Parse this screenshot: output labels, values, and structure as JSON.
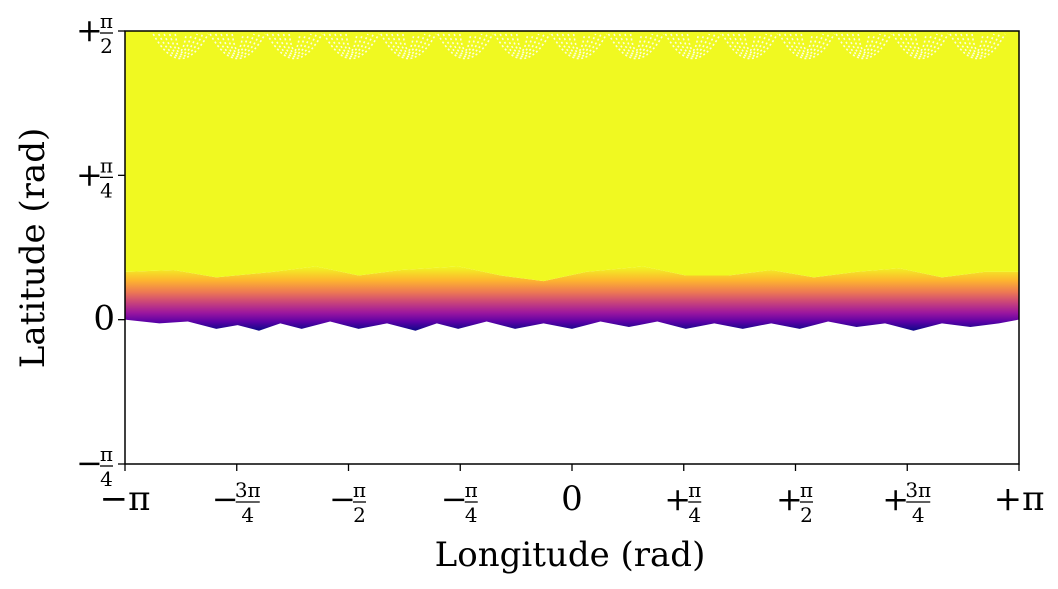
{
  "chart_data": {
    "type": "scatter",
    "xlabel": "Longitude (rad)",
    "ylabel": "Latitude (rad)",
    "xlim": [
      -3.14159265,
      3.14159265
    ],
    "ylim": [
      -0.78539816,
      1.57079633
    ],
    "x_ticks": [
      {
        "value": -3.14159265,
        "label": "−π"
      },
      {
        "value": -2.35619449,
        "label": "−3π/4"
      },
      {
        "value": -1.57079633,
        "label": "−π/2"
      },
      {
        "value": -0.78539816,
        "label": "−π/4"
      },
      {
        "value": 0,
        "label": "0"
      },
      {
        "value": 0.78539816,
        "label": "+π/4"
      },
      {
        "value": 1.57079633,
        "label": "+π/2"
      },
      {
        "value": 2.35619449,
        "label": "+3π/4"
      },
      {
        "value": 3.14159265,
        "label": "+π"
      }
    ],
    "y_ticks": [
      {
        "value": -0.78539816,
        "label": "−π/4"
      },
      {
        "value": 0,
        "label": "0"
      },
      {
        "value": 0.78539816,
        "label": "+π/4"
      },
      {
        "value": 1.57079633,
        "label": "+π/2"
      }
    ],
    "colormap": [
      "#0d0887",
      "#5c01a6",
      "#9c179e",
      "#cc4778",
      "#ed7953",
      "#fdb42f",
      "#f0f921"
    ],
    "fill_color": "#f0f921",
    "boundary_edge": [
      [
        -3.14,
        0.0
      ],
      [
        -2.9,
        -0.02
      ],
      [
        -2.7,
        -0.01
      ],
      [
        -2.5,
        -0.05
      ],
      [
        -2.35,
        -0.03
      ],
      [
        -2.2,
        -0.06
      ],
      [
        -2.05,
        -0.02
      ],
      [
        -1.9,
        -0.05
      ],
      [
        -1.7,
        -0.01
      ],
      [
        -1.5,
        -0.05
      ],
      [
        -1.3,
        -0.02
      ],
      [
        -1.1,
        -0.06
      ],
      [
        -0.95,
        -0.02
      ],
      [
        -0.8,
        -0.05
      ],
      [
        -0.6,
        -0.01
      ],
      [
        -0.4,
        -0.05
      ],
      [
        -0.2,
        -0.02
      ],
      [
        0.0,
        -0.05
      ],
      [
        0.2,
        -0.01
      ],
      [
        0.4,
        -0.04
      ],
      [
        0.6,
        -0.01
      ],
      [
        0.8,
        -0.05
      ],
      [
        1.0,
        -0.02
      ],
      [
        1.2,
        -0.05
      ],
      [
        1.4,
        -0.02
      ],
      [
        1.6,
        -0.05
      ],
      [
        1.8,
        -0.01
      ],
      [
        2.0,
        -0.04
      ],
      [
        2.2,
        -0.02
      ],
      [
        2.4,
        -0.06
      ],
      [
        2.6,
        -0.02
      ],
      [
        2.8,
        -0.04
      ],
      [
        3.0,
        -0.02
      ],
      [
        3.14,
        0.0
      ]
    ],
    "band_top": [
      [
        -3.14,
        0.26
      ],
      [
        -2.8,
        0.27
      ],
      [
        -2.5,
        0.23
      ],
      [
        -2.1,
        0.26
      ],
      [
        -1.8,
        0.29
      ],
      [
        -1.5,
        0.24
      ],
      [
        -1.2,
        0.27
      ],
      [
        -0.8,
        0.29
      ],
      [
        -0.5,
        0.24
      ],
      [
        -0.2,
        0.21
      ],
      [
        0.1,
        0.26
      ],
      [
        0.5,
        0.29
      ],
      [
        0.8,
        0.24
      ],
      [
        1.1,
        0.24
      ],
      [
        1.4,
        0.27
      ],
      [
        1.7,
        0.23
      ],
      [
        2.0,
        0.26
      ],
      [
        2.3,
        0.28
      ],
      [
        2.6,
        0.23
      ],
      [
        2.9,
        0.26
      ],
      [
        3.14,
        0.26
      ]
    ]
  },
  "icons": {
    "pi": "π"
  }
}
